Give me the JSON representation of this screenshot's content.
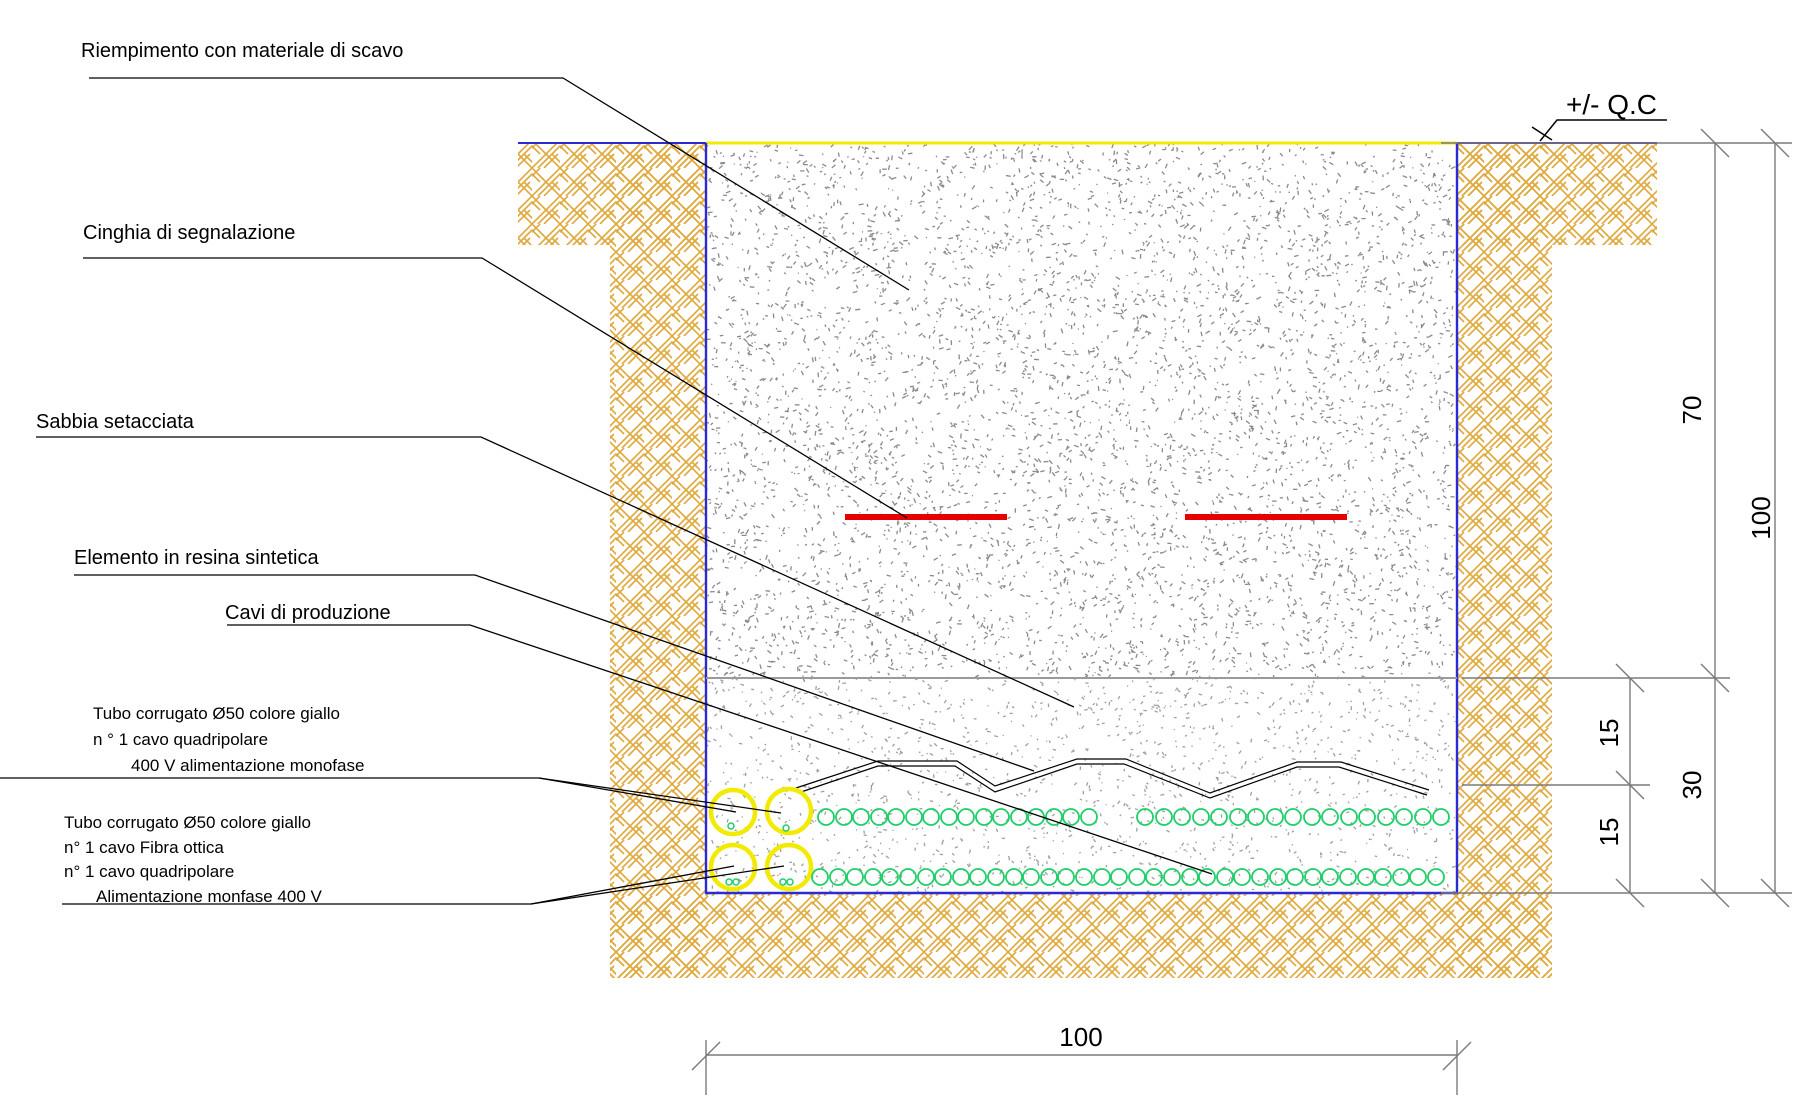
{
  "callouts": {
    "riempimento": "Riempimento con materiale di scavo",
    "cinghia": "Cinghia di segnalazione",
    "sabbia": "Sabbia setacciata",
    "elemento": "Elemento in resina sintetica",
    "cavi": "Cavi di produzione",
    "tubo1_line1": "Tubo corrugato Ø50 colore giallo",
    "tubo1_line2": "n ° 1 cavo quadripolare",
    "tubo1_line3": "400 V alimentazione monofase",
    "tubo2_line1": "Tubo corrugato Ø50 colore giallo",
    "tubo2_line2": "n° 1 cavo Fibra ottica",
    "tubo2_line3": "n° 1 cavo quadripolare",
    "tubo2_line4": "Alimentazione monfase 400 V"
  },
  "reference": {
    "level_label": "+/- Q.C"
  },
  "dimensions": {
    "width": "100",
    "depth_total": "100",
    "depth_fill": "70",
    "depth_sand": "30",
    "sand_upper": "15",
    "sand_lower": "15"
  },
  "colors": {
    "soil_hatch": "#e0a83a",
    "trench_outline": "#2b2bd6",
    "warning_tape": "#e60000",
    "conduit": "#f2ea00",
    "cables": "#1fcf6a",
    "fill_speckle": "#8a8a8a",
    "sand_speckle": "#a0a0a0"
  }
}
